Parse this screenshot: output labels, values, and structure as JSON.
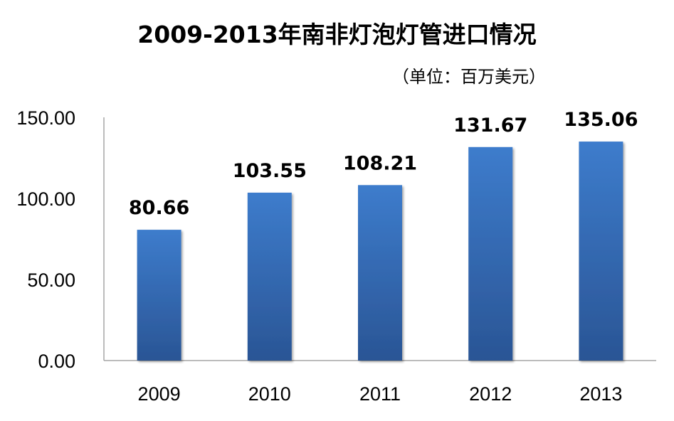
{
  "title": "2009-2013年南非灯泡灯管进口情况",
  "subtitle": "（单位：百万美元）",
  "chart_data": {
    "type": "bar",
    "title": "2009-2013年南非灯泡灯管进口情况",
    "subtitle": "（单位：百万美元）",
    "categories": [
      "2009",
      "2010",
      "2011",
      "2012",
      "2013"
    ],
    "values": [
      80.66,
      103.55,
      108.21,
      131.67,
      135.06
    ],
    "value_labels": [
      "80.66",
      "103.55",
      "108.21",
      "131.67",
      "135.06"
    ],
    "yticks": [
      "0.00",
      "50.00",
      "100.00",
      "150.00"
    ],
    "ytick_values": [
      0,
      50,
      100,
      150
    ],
    "ylim": [
      0,
      150
    ],
    "xlabel": "",
    "ylabel": "",
    "grid": false,
    "legend": "none",
    "bar_color": "#3a73c0",
    "bar_color_dark": "#2b5596",
    "axis_color": "#a6a6a6"
  }
}
